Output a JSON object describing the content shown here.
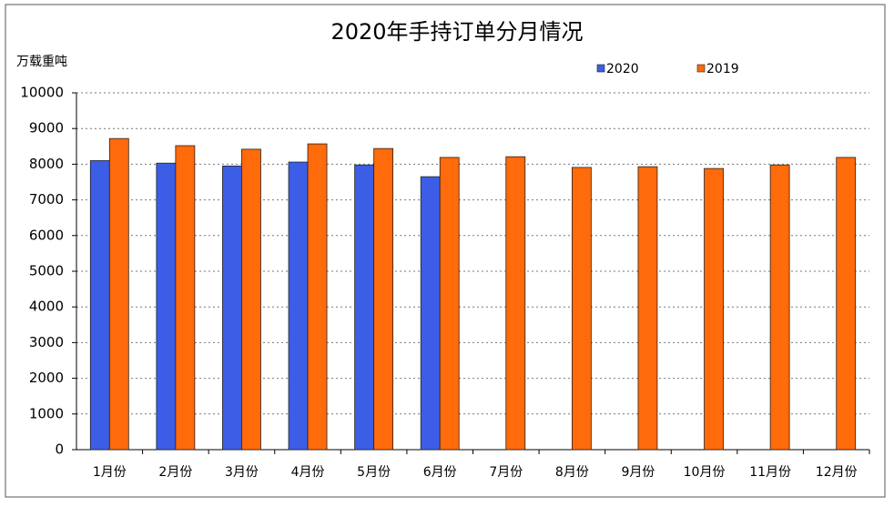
{
  "chart_data": {
    "type": "bar",
    "title": "2020年手持订单分月情况",
    "y_label": "万载重吨",
    "categories": [
      "1月份",
      "2月份",
      "3月份",
      "4月份",
      "5月份",
      "6月份",
      "7月份",
      "8月份",
      "9月份",
      "10月份",
      "11月份",
      "12月份"
    ],
    "series": [
      {
        "name": "2020",
        "color": "#3c5ee6",
        "values": [
          8100,
          8030,
          7950,
          8060,
          7980,
          7650,
          null,
          null,
          null,
          null,
          null,
          null
        ]
      },
      {
        "name": "2019",
        "color": "#ff6a0a",
        "values": [
          8720,
          8520,
          8420,
          8570,
          8440,
          8190,
          8210,
          7910,
          7930,
          7880,
          7980,
          8190
        ]
      }
    ],
    "ylim": [
      0,
      10000
    ],
    "yticks": [
      0,
      1000,
      2000,
      3000,
      4000,
      5000,
      6000,
      7000,
      8000,
      9000,
      10000
    ],
    "grid": true,
    "legend": "top"
  }
}
